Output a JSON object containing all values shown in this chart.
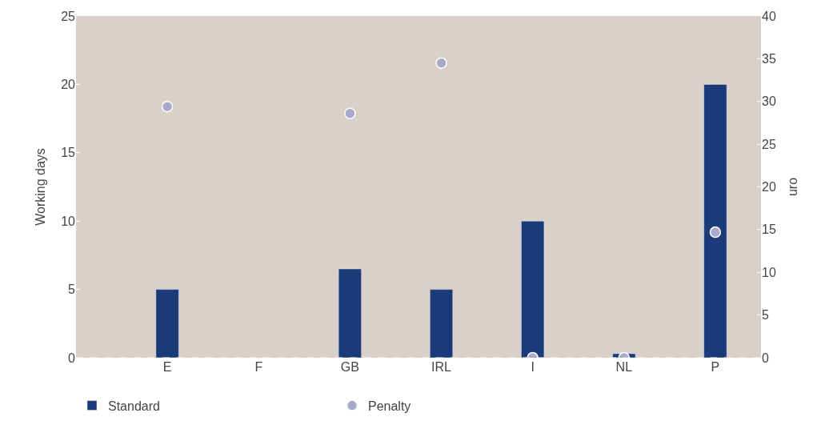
{
  "chart_data": {
    "type": "bar",
    "categories": [
      "E",
      "F",
      "GB",
      "IRL",
      "I",
      "NL",
      "P"
    ],
    "series": [
      {
        "name": "Standard",
        "color": "#1b3a78",
        "values": [
          5,
          null,
          6.5,
          5,
          10,
          0.3,
          20
        ]
      },
      {
        "name": "Penalty",
        "type": "scatter",
        "axis": "y2",
        "color": "#a9aacb",
        "marker": "circle",
        "values": [
          29.4,
          null,
          28.6,
          34.5,
          0,
          0,
          14.7
        ]
      }
    ],
    "ylabel": "Working days",
    "y2label": "uro",
    "ylim": [
      0,
      25
    ],
    "yticks": [
      0,
      5,
      10,
      15,
      20,
      25
    ],
    "y2lim": [
      0,
      40
    ],
    "y2ticks": [
      0,
      5,
      10,
      15,
      20,
      25,
      30,
      35,
      40
    ],
    "ref_lines": [
      {
        "axis": "y",
        "value": 0,
        "color": "#ffffff",
        "line_style": "dashed"
      }
    ],
    "grid": false,
    "legend": "bottom left"
  }
}
